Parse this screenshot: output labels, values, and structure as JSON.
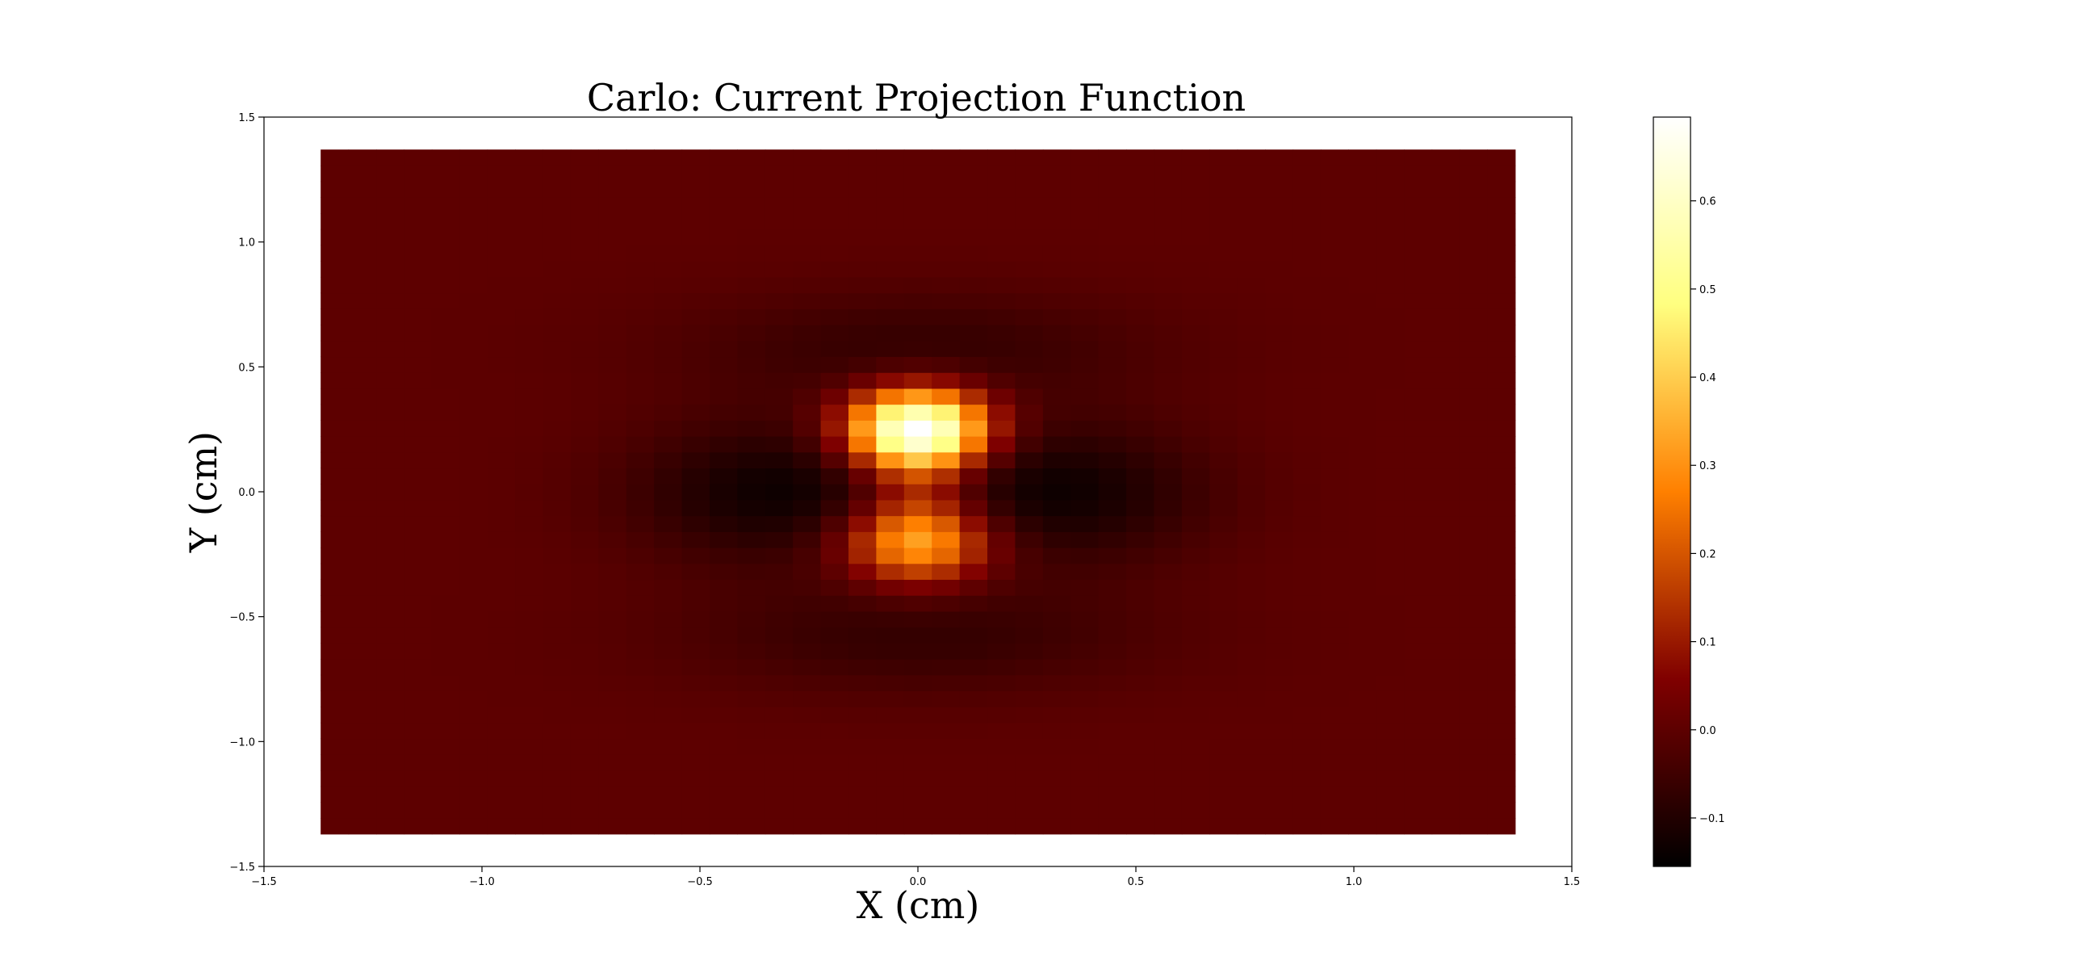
{
  "chart_data": {
    "type": "heatmap",
    "title": "Carlo: Current Projection Function",
    "xlabel": "X (cm)",
    "ylabel": "Y (cm)",
    "xlim": [
      -1.5,
      1.5
    ],
    "ylim": [
      -1.5,
      1.5
    ],
    "x_ticks": [
      -1.5,
      -1.0,
      -0.5,
      0.0,
      0.5,
      1.0,
      1.5
    ],
    "x_tick_labels": [
      "−1.5",
      "−1.0",
      "−0.5",
      "0.0",
      "0.5",
      "1.0",
      "1.5"
    ],
    "y_ticks": [
      -1.5,
      -1.0,
      -0.5,
      0.0,
      0.5,
      1.0,
      1.5
    ],
    "y_tick_labels": [
      "−1.5",
      "−1.0",
      "−0.5",
      "0.0",
      "0.5",
      "1.0",
      "1.5"
    ],
    "extent": {
      "x": [
        -1.37,
        1.37
      ],
      "y": [
        -1.37,
        1.37
      ]
    },
    "grid": {
      "nx": 43,
      "ny": 43
    },
    "field": {
      "background": 0.0,
      "peak": {
        "x": 0.0,
        "y": 0.25,
        "value": 0.7
      },
      "lower_lobe": {
        "x": 0.0,
        "y": -0.2,
        "value": 0.32
      },
      "minima": [
        {
          "x": -0.32,
          "y": 0.0,
          "value": -0.13
        },
        {
          "x": 0.32,
          "y": 0.0,
          "value": -0.13
        }
      ]
    },
    "colormap": "afmhot",
    "colorbar": {
      "vmin": -0.155,
      "vmax": 0.695,
      "ticks": [
        -0.1,
        0.0,
        0.1,
        0.2,
        0.3,
        0.4,
        0.5,
        0.6
      ],
      "tick_labels": [
        "−0.1",
        "0.0",
        "0.1",
        "0.2",
        "0.3",
        "0.4",
        "0.5",
        "0.6"
      ]
    },
    "grid_lines": false
  }
}
